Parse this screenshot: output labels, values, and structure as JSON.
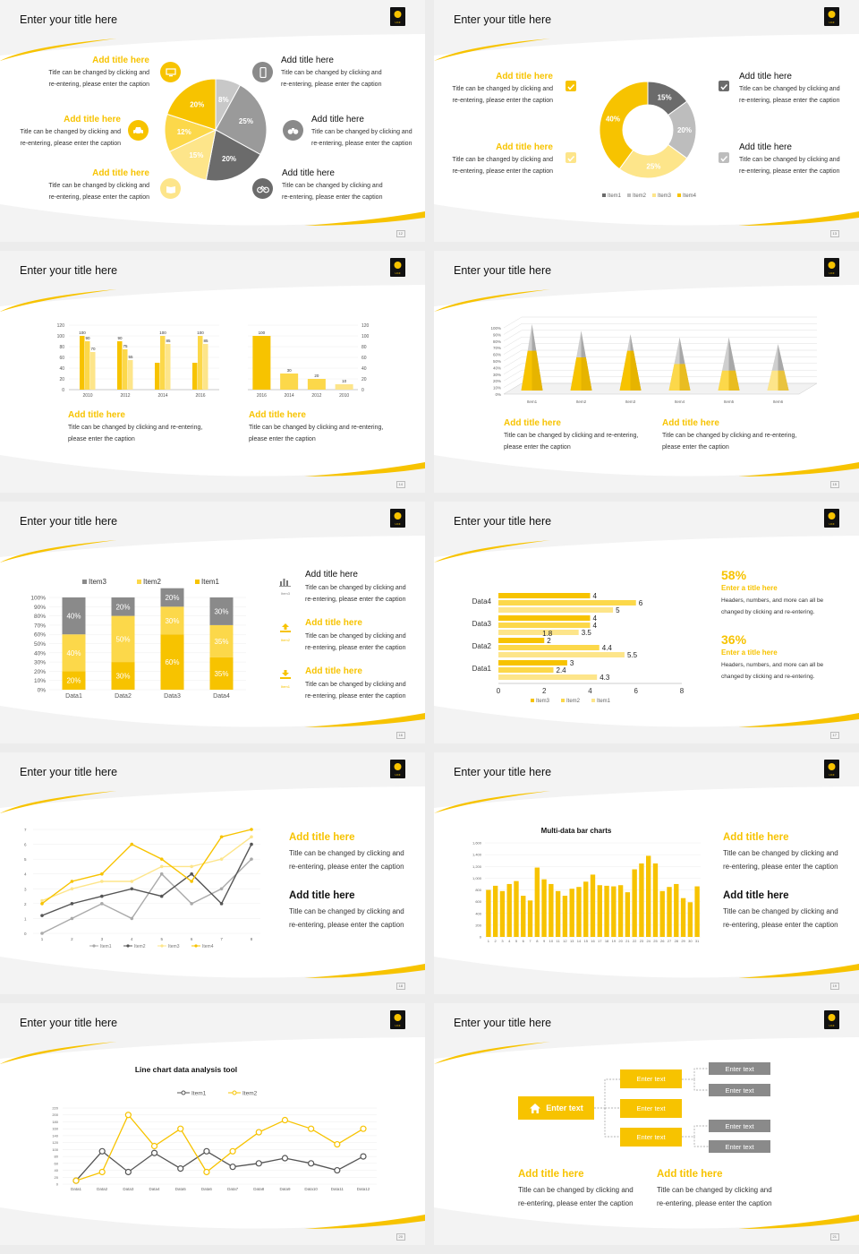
{
  "common": {
    "slide_title": "Enter your title here",
    "add_title": "Add title here",
    "caption_l1": "Title can be changed by clicking and",
    "caption_l2": "re-entering, please enter the caption",
    "caption_s1": "Title can be changed by clicking and re-entering,",
    "caption_s2": "please enter the caption",
    "logo_text": "UCF"
  },
  "colors": {
    "yellow": "#f7c300",
    "light_yellow": "#fde58a",
    "gray": "#9a9a9a",
    "dark_gray": "#6b6b6b"
  },
  "page_numbers": [
    "12",
    "13",
    "14",
    "15",
    "16",
    "17",
    "18",
    "19",
    "20",
    "21"
  ],
  "icons": {
    "s1_left": [
      "monitor-icon",
      "car-icon",
      "book-icon"
    ],
    "s1_right": [
      "phone-icon",
      "binoculars-icon",
      "bicycle-icon"
    ],
    "s5": [
      "bar-chart-icon",
      "upload-icon",
      "download-icon"
    ]
  },
  "slide6": {
    "stat1": "58%",
    "stat1_title": "Enter a title here",
    "stat2": "36%",
    "stat2_title": "Enter a title here",
    "stat_l1": "Headers, numbers, and more can all be",
    "stat_l2": "changed by clicking and re-entering."
  },
  "slide10": {
    "node_root": "Enter text",
    "node": "Enter text"
  },
  "chart_data": [
    {
      "type": "pie",
      "slices": [
        {
          "label": "8%",
          "value": 8
        },
        {
          "label": "25%",
          "value": 25
        },
        {
          "label": "20%",
          "value": 20
        },
        {
          "label": "15%",
          "value": 15
        },
        {
          "label": "12%",
          "value": 12
        },
        {
          "label": "20%",
          "value": 20
        }
      ]
    },
    {
      "type": "pie",
      "donut": true,
      "slices": [
        {
          "name": "Item1",
          "label": "15%",
          "value": 15
        },
        {
          "name": "Item2",
          "label": "20%",
          "value": 20
        },
        {
          "name": "Item3",
          "label": "25%",
          "value": 25
        },
        {
          "name": "Item4",
          "label": "40%",
          "value": 40
        }
      ],
      "legend": [
        "Item1",
        "Item2",
        "Item3",
        "Item4"
      ]
    },
    {
      "type": "bar",
      "categories": [
        "2010",
        "2012",
        "2014",
        "2016"
      ],
      "series": [
        {
          "values": [
            100,
            90,
            50,
            50
          ]
        },
        {
          "values": [
            90,
            75,
            100,
            100
          ]
        },
        {
          "values": [
            70,
            55,
            85,
            85
          ]
        }
      ],
      "data_labels": [
        [
          "100",
          "90",
          "70"
        ],
        [
          "90",
          "75",
          "55"
        ],
        [
          "100",
          "85"
        ],
        [
          "100",
          "85"
        ]
      ],
      "ylim": [
        0,
        120
      ],
      "yticks": [
        "0",
        "20",
        "40",
        "60",
        "80",
        "100",
        "120"
      ]
    },
    {
      "type": "bar",
      "categories": [
        "2016",
        "2014",
        "2012",
        "2010"
      ],
      "values": [
        100,
        30,
        20,
        10
      ],
      "ylim": [
        0,
        120
      ],
      "yticks": [
        "0",
        "20",
        "40",
        "60",
        "80",
        "100",
        "120"
      ]
    },
    {
      "type": "bar",
      "style": "3d-cone",
      "categories": [
        "Item1",
        "Item2",
        "Item3",
        "Item4",
        "Item5",
        "Item6"
      ],
      "series": [
        {
          "name": "gray",
          "values": [
            100,
            90,
            85,
            80,
            80,
            70
          ]
        },
        {
          "name": "yellow",
          "values": [
            60,
            50,
            60,
            40,
            30,
            30
          ]
        }
      ],
      "yticks": [
        "0%",
        "10%",
        "20%",
        "30%",
        "40%",
        "50%",
        "60%",
        "70%",
        "80%",
        "90%",
        "100%"
      ]
    },
    {
      "type": "bar",
      "stacked": true,
      "categories": [
        "Data1",
        "Data2",
        "Data3",
        "Data4"
      ],
      "series": [
        {
          "name": "Item1",
          "values": [
            20,
            30,
            60,
            35
          ]
        },
        {
          "name": "Item2",
          "values": [
            40,
            50,
            30,
            35
          ]
        },
        {
          "name": "Item3",
          "values": [
            40,
            20,
            20,
            30
          ]
        }
      ],
      "labels": [
        [
          "20%",
          "40%",
          "40%"
        ],
        [
          "30%",
          "50%",
          "20%"
        ],
        [
          "60%",
          "30%",
          "20%"
        ],
        [
          "35%",
          "35%",
          "30%"
        ]
      ],
      "yticks": [
        "0%",
        "10%",
        "20%",
        "30%",
        "40%",
        "50%",
        "60%",
        "70%",
        "80%",
        "90%",
        "100%"
      ]
    },
    {
      "type": "bar",
      "orientation": "horizontal",
      "categories": [
        "Data1",
        "Data2",
        "Data3",
        "Data4"
      ],
      "series": [
        {
          "name": "Item3",
          "values": [
            3,
            2,
            4,
            4
          ]
        },
        {
          "name": "Item2",
          "values": [
            2.4,
            4.4,
            4,
            6
          ]
        },
        {
          "name": "Item1",
          "values": [
            4.3,
            5.5,
            3.5,
            5
          ]
        }
      ],
      "xticks": [
        "0",
        "2",
        "4",
        "6",
        "8"
      ],
      "extra_labels": [
        "1.8"
      ],
      "xlim": [
        0,
        8
      ]
    },
    {
      "type": "line",
      "x": [
        "1",
        "2",
        "3",
        "4",
        "5",
        "6",
        "7",
        "8"
      ],
      "series": [
        {
          "name": "Item1",
          "values": [
            0,
            1,
            2,
            1,
            4,
            2,
            3,
            5
          ]
        },
        {
          "name": "Item2",
          "values": [
            1.2,
            2,
            2.5,
            3,
            2.5,
            4,
            2,
            6
          ]
        },
        {
          "name": "Item3",
          "values": [
            2.2,
            3,
            3.5,
            3.5,
            4.5,
            4.5,
            5,
            6.5
          ]
        },
        {
          "name": "Item4",
          "values": [
            2,
            3.5,
            4,
            6,
            5,
            3.5,
            6.5,
            7
          ]
        }
      ],
      "yticks": [
        "0",
        "1",
        "2",
        "3",
        "4",
        "5",
        "6",
        "7"
      ]
    },
    {
      "type": "bar",
      "title": "Multi-data bar charts",
      "categories": [
        "1",
        "2",
        "3",
        "4",
        "5",
        "6",
        "7",
        "8",
        "9",
        "10",
        "11",
        "12",
        "13",
        "14",
        "15",
        "16",
        "17",
        "18",
        "19",
        "20",
        "21",
        "22",
        "23",
        "24",
        "25",
        "26",
        "27",
        "28",
        "29",
        "30",
        "31"
      ],
      "values": [
        800,
        870,
        780,
        900,
        950,
        700,
        620,
        1180,
        980,
        900,
        780,
        700,
        820,
        850,
        940,
        1060,
        880,
        870,
        860,
        880,
        760,
        1150,
        1250,
        1380,
        1250,
        780,
        850,
        900,
        660,
        590,
        860
      ],
      "yticks": [
        "0",
        "200",
        "400",
        "600",
        "800",
        "1,000",
        "1,200",
        "1,400",
        "1,600"
      ]
    },
    {
      "type": "line",
      "title": "Line chart data analysis tool",
      "x": [
        "Data1",
        "Data2",
        "Data3",
        "Data4",
        "Data5",
        "Data6",
        "Data7",
        "Data8",
        "Data9",
        "Data10",
        "Data11",
        "Data12"
      ],
      "series": [
        {
          "name": "Item1",
          "values": [
            10,
            95,
            35,
            90,
            45,
            95,
            50,
            60,
            75,
            60,
            40,
            80
          ]
        },
        {
          "name": "Item2",
          "values": [
            10,
            35,
            200,
            110,
            160,
            35,
            95,
            150,
            185,
            160,
            115,
            160
          ]
        }
      ],
      "yticks": [
        "0",
        "20",
        "40",
        "60",
        "80",
        "100",
        "120",
        "140",
        "160",
        "180",
        "200",
        "220"
      ]
    }
  ]
}
